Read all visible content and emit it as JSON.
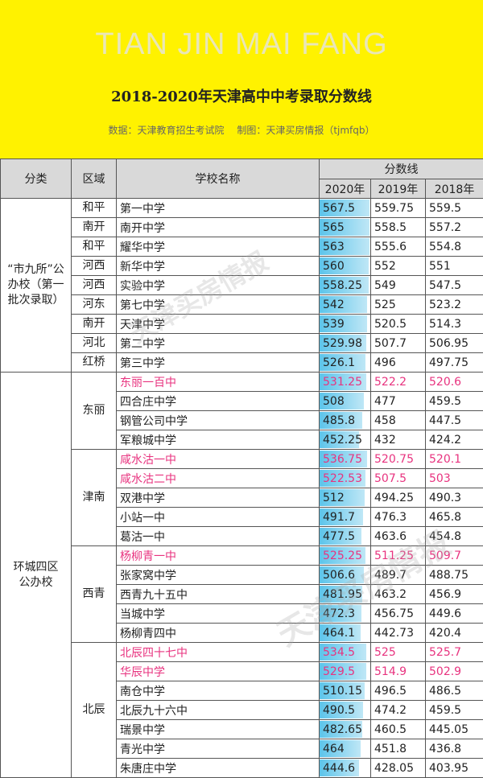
{
  "header": {
    "brand": "TIAN JIN MAI FANG",
    "title": "2018-2020年天津高中中考录取分数线",
    "source": "数据：天津教育招生考试院",
    "credit": "制图：天津买房情报（tjmfqb）"
  },
  "table": {
    "col_category": "分类",
    "col_district": "区域",
    "col_school": "学校名称",
    "col_scores": "分数线",
    "years": [
      "2020年",
      "2019年",
      "2018年"
    ],
    "bar_max": 567.5,
    "groups": [
      {
        "category": "“市九所”公办校（第一批次录取）",
        "rows": [
          {
            "district": "和平",
            "school": "第一中学",
            "s2020": "567.5",
            "s2019": "559.75",
            "s2018": "559.5"
          },
          {
            "district": "南开",
            "school": "南开中学",
            "s2020": "565",
            "s2019": "558.5",
            "s2018": "557.2"
          },
          {
            "district": "和平",
            "school": "耀华中学",
            "s2020": "563",
            "s2019": "555.6",
            "s2018": "554.8"
          },
          {
            "district": "河西",
            "school": "新华中学",
            "s2020": "560",
            "s2019": "552",
            "s2018": "551"
          },
          {
            "district": "河西",
            "school": "实验中学",
            "s2020": "558.25",
            "s2019": "549",
            "s2018": "547.5"
          },
          {
            "district": "河东",
            "school": "第七中学",
            "s2020": "542",
            "s2019": "525",
            "s2018": "523.2"
          },
          {
            "district": "南开",
            "school": "天津中学",
            "s2020": "539",
            "s2019": "520.5",
            "s2018": "514.3"
          },
          {
            "district": "河北",
            "school": "第二中学",
            "s2020": "529.98",
            "s2019": "507.7",
            "s2018": "506.95"
          },
          {
            "district": "红桥",
            "school": "第三中学",
            "s2020": "526.1",
            "s2019": "496",
            "s2018": "497.75"
          }
        ]
      },
      {
        "category": "环城四区公办校",
        "districts": [
          {
            "name": "东丽",
            "rows": [
              {
                "school": "东丽一百中",
                "s2020": "531.25",
                "s2019": "522.2",
                "s2018": "520.6",
                "highlight": true
              },
              {
                "school": "四合庄中学",
                "s2020": "508",
                "s2019": "477",
                "s2018": "459.5"
              },
              {
                "school": "钢管公司中学",
                "s2020": "485.8",
                "s2019": "458",
                "s2018": "447.5"
              },
              {
                "school": "军粮城中学",
                "s2020": "452.25",
                "s2019": "432",
                "s2018": "424.2"
              }
            ]
          },
          {
            "name": "津南",
            "rows": [
              {
                "school": "咸水沽一中",
                "s2020": "536.75",
                "s2019": "520.75",
                "s2018": "520.1",
                "highlight": true
              },
              {
                "school": "咸水沽二中",
                "s2020": "522.53",
                "s2019": "507.5",
                "s2018": "503",
                "highlight": true
              },
              {
                "school": "双港中学",
                "s2020": "512",
                "s2019": "494.25",
                "s2018": "490.3"
              },
              {
                "school": "小站一中",
                "s2020": "491.7",
                "s2019": "476.3",
                "s2018": "465.8"
              },
              {
                "school": "葛沽一中",
                "s2020": "477.5",
                "s2019": "463.6",
                "s2018": "454.8"
              }
            ]
          },
          {
            "name": "西青",
            "rows": [
              {
                "school": "杨柳青一中",
                "s2020": "525.25",
                "s2019": "511.25",
                "s2018": "509.7",
                "highlight": true
              },
              {
                "school": "张家窝中学",
                "s2020": "506.6",
                "s2019": "489.7",
                "s2018": "488.75"
              },
              {
                "school": "西青九十五中",
                "s2020": "481.95",
                "s2019": "463.2",
                "s2018": "456.9"
              },
              {
                "school": "当城中学",
                "s2020": "472.3",
                "s2019": "456.75",
                "s2018": "449.6"
              },
              {
                "school": "杨柳青四中",
                "s2020": "464.1",
                "s2019": "442.73",
                "s2018": "420.4"
              }
            ]
          },
          {
            "name": "北辰",
            "rows": [
              {
                "school": "北辰四十七中",
                "s2020": "534.5",
                "s2019": "525",
                "s2018": "525.7",
                "highlight": true
              },
              {
                "school": "华辰中学",
                "s2020": "529.5",
                "s2019": "514.9",
                "s2018": "502.9",
                "highlight": true
              },
              {
                "school": "南仓中学",
                "s2020": "510.15",
                "s2019": "496.5",
                "s2018": "486.5"
              },
              {
                "school": "北辰九十六中",
                "s2020": "490.5",
                "s2019": "474.2",
                "s2018": "459.5"
              },
              {
                "school": "瑞景中学",
                "s2020": "482.65",
                "s2019": "460.5",
                "s2018": "445.05"
              },
              {
                "school": "青光中学",
                "s2020": "464",
                "s2019": "451.8",
                "s2018": "436.8"
              },
              {
                "school": "朱唐庄中学",
                "s2020": "444.6",
                "s2019": "428.05",
                "s2018": "403.95"
              }
            ]
          }
        ]
      }
    ]
  },
  "watermark": "天津买房情报",
  "colors": {
    "banner": "#FFF200",
    "highlight": "#e8337f",
    "bar": "#5cc4ea"
  }
}
